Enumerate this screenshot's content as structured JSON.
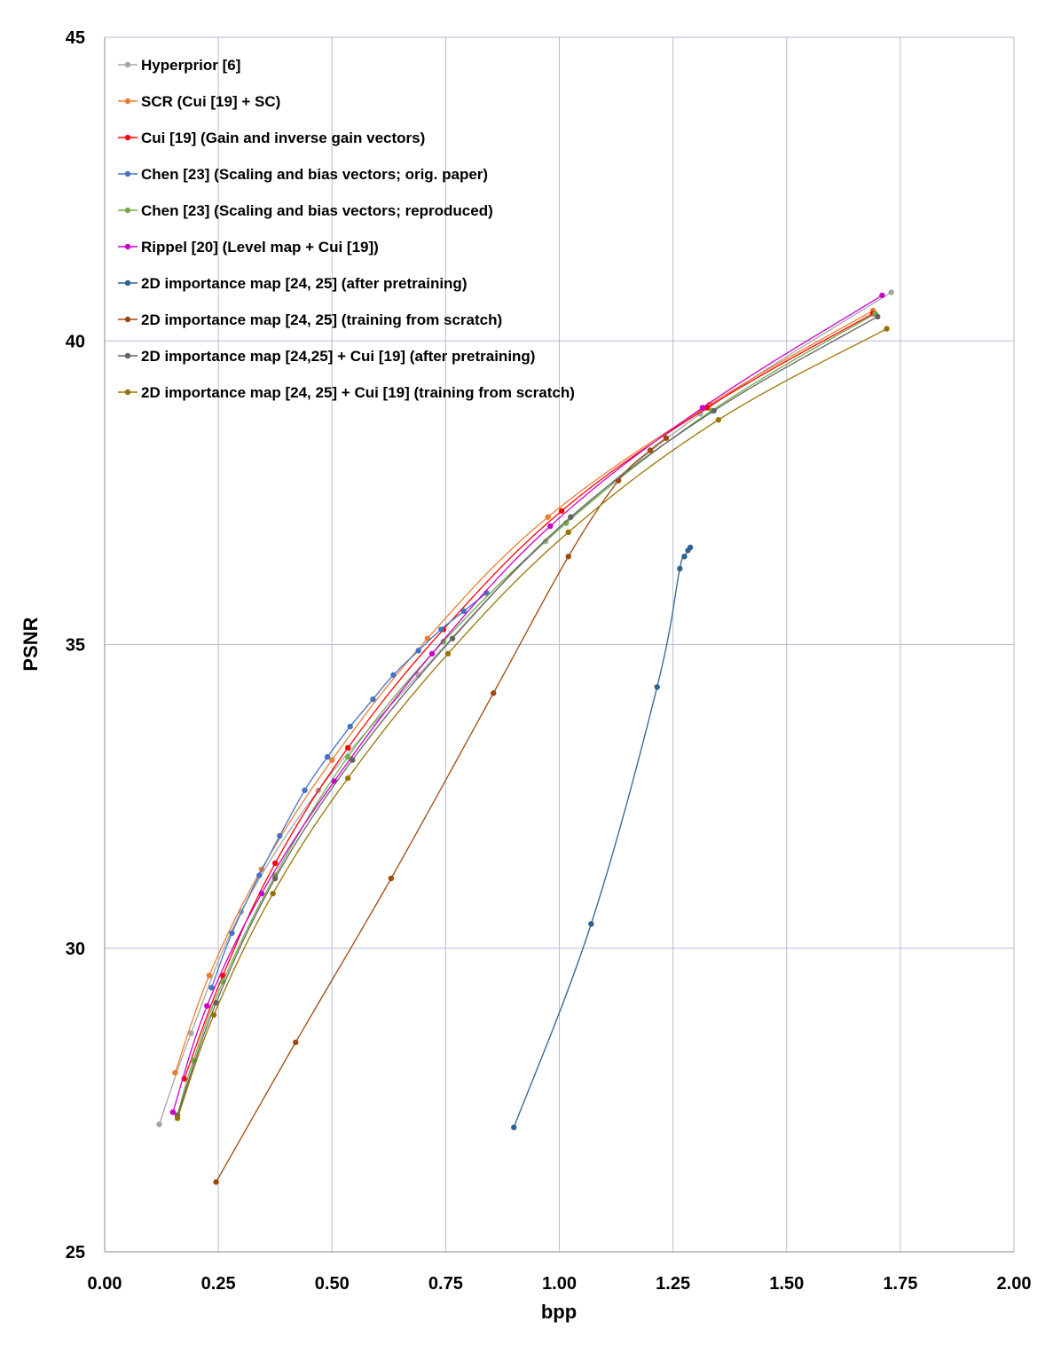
{
  "chart_data": {
    "type": "line",
    "title": "",
    "xlabel": "bpp",
    "ylabel": "PSNR",
    "xlim": [
      0,
      2.0
    ],
    "ylim": [
      25,
      45
    ],
    "xticks": [
      "0.00",
      "0.25",
      "0.50",
      "0.75",
      "1.00",
      "1.25",
      "1.50",
      "1.75",
      "2.00"
    ],
    "yticks": [
      "25",
      "30",
      "35",
      "40",
      "45"
    ],
    "grid": true,
    "legend_position": "top-left",
    "series": [
      {
        "name": "Hyperprior [6]",
        "color": "#a5a5a5",
        "points": [
          [
            0.12,
            27.1
          ],
          [
            0.19,
            28.6
          ],
          [
            0.3,
            30.6
          ],
          [
            0.47,
            32.6
          ],
          [
            0.69,
            34.5
          ],
          [
            0.97,
            36.7
          ],
          [
            1.31,
            38.8
          ],
          [
            1.73,
            40.8
          ]
        ]
      },
      {
        "name": "SCR (Cui [19] + SC)",
        "color": "#ed7d31",
        "points": [
          [
            0.155,
            27.95
          ],
          [
            0.23,
            29.55
          ],
          [
            0.345,
            31.3
          ],
          [
            0.5,
            33.1
          ],
          [
            0.71,
            35.1
          ],
          [
            0.975,
            37.1
          ],
          [
            1.33,
            38.95
          ],
          [
            1.69,
            40.5
          ]
        ]
      },
      {
        "name": "Cui [19] (Gain and inverse gain vectors)",
        "color": "#ff0000",
        "points": [
          [
            0.175,
            27.85
          ],
          [
            0.26,
            29.55
          ],
          [
            0.375,
            31.4
          ],
          [
            0.535,
            33.3
          ],
          [
            0.745,
            35.25
          ],
          [
            1.005,
            37.2
          ],
          [
            1.325,
            38.9
          ],
          [
            1.69,
            40.45
          ]
        ]
      },
      {
        "name": "Chen [23] (Scaling and bias vectors; orig. paper)",
        "color": "#4472c4",
        "points": [
          [
            0.235,
            29.35
          ],
          [
            0.28,
            30.25
          ],
          [
            0.34,
            31.2
          ],
          [
            0.385,
            31.85
          ],
          [
            0.44,
            32.6
          ],
          [
            0.49,
            33.15
          ],
          [
            0.54,
            33.65
          ],
          [
            0.59,
            34.1
          ],
          [
            0.635,
            34.5
          ],
          [
            0.69,
            34.9
          ],
          [
            0.74,
            35.25
          ],
          [
            0.79,
            35.55
          ],
          [
            0.84,
            35.85
          ]
        ]
      },
      {
        "name": "Chen [23] (Scaling and bias vectors; reproduced)",
        "color": "#70ad47",
        "points": [
          [
            0.16,
            27.25
          ],
          [
            0.195,
            28.15
          ],
          [
            0.26,
            29.45
          ],
          [
            0.375,
            31.2
          ],
          [
            0.535,
            33.15
          ],
          [
            0.745,
            35.05
          ],
          [
            1.015,
            37.0
          ],
          [
            1.335,
            38.85
          ],
          [
            1.695,
            40.45
          ]
        ]
      },
      {
        "name": "Rippel [20] (Level map + Cui [19])",
        "color": "#cc00cc",
        "points": [
          [
            0.15,
            27.3
          ],
          [
            0.225,
            29.05
          ],
          [
            0.345,
            30.9
          ],
          [
            0.505,
            32.75
          ],
          [
            0.72,
            34.85
          ],
          [
            0.98,
            36.95
          ],
          [
            1.315,
            38.9
          ],
          [
            1.71,
            40.75
          ]
        ]
      },
      {
        "name": "2D importance map [24, 25] (after pretraining)",
        "color": "#2f6191",
        "points": [
          [
            0.9,
            27.05
          ],
          [
            1.07,
            30.4
          ],
          [
            1.215,
            34.3
          ],
          [
            1.265,
            36.25
          ],
          [
            1.275,
            36.45
          ],
          [
            1.283,
            36.55
          ],
          [
            1.288,
            36.6
          ]
        ]
      },
      {
        "name": "2D importance map [24, 25] (training from scratch)",
        "color": "#9e480e",
        "points": [
          [
            0.245,
            26.15
          ],
          [
            0.42,
            28.45
          ],
          [
            0.63,
            31.15
          ],
          [
            0.855,
            34.2
          ],
          [
            1.02,
            36.45
          ],
          [
            1.13,
            37.7
          ],
          [
            1.2,
            38.2
          ],
          [
            1.235,
            38.4
          ]
        ]
      },
      {
        "name": "2D importance map [24,25] + Cui [19] (after pretraining)",
        "color": "#636363",
        "points": [
          [
            0.16,
            27.25
          ],
          [
            0.245,
            29.1
          ],
          [
            0.375,
            31.15
          ],
          [
            0.545,
            33.1
          ],
          [
            0.765,
            35.1
          ],
          [
            1.025,
            37.1
          ],
          [
            1.34,
            38.85
          ],
          [
            1.7,
            40.4
          ]
        ]
      },
      {
        "name": "2D importance map [24, 25] + Cui [19] (training from scratch)",
        "color": "#997300",
        "points": [
          [
            0.16,
            27.2
          ],
          [
            0.24,
            28.9
          ],
          [
            0.37,
            30.9
          ],
          [
            0.535,
            32.8
          ],
          [
            0.755,
            34.85
          ],
          [
            1.02,
            36.85
          ],
          [
            1.35,
            38.7
          ],
          [
            1.72,
            40.2
          ]
        ]
      }
    ]
  }
}
